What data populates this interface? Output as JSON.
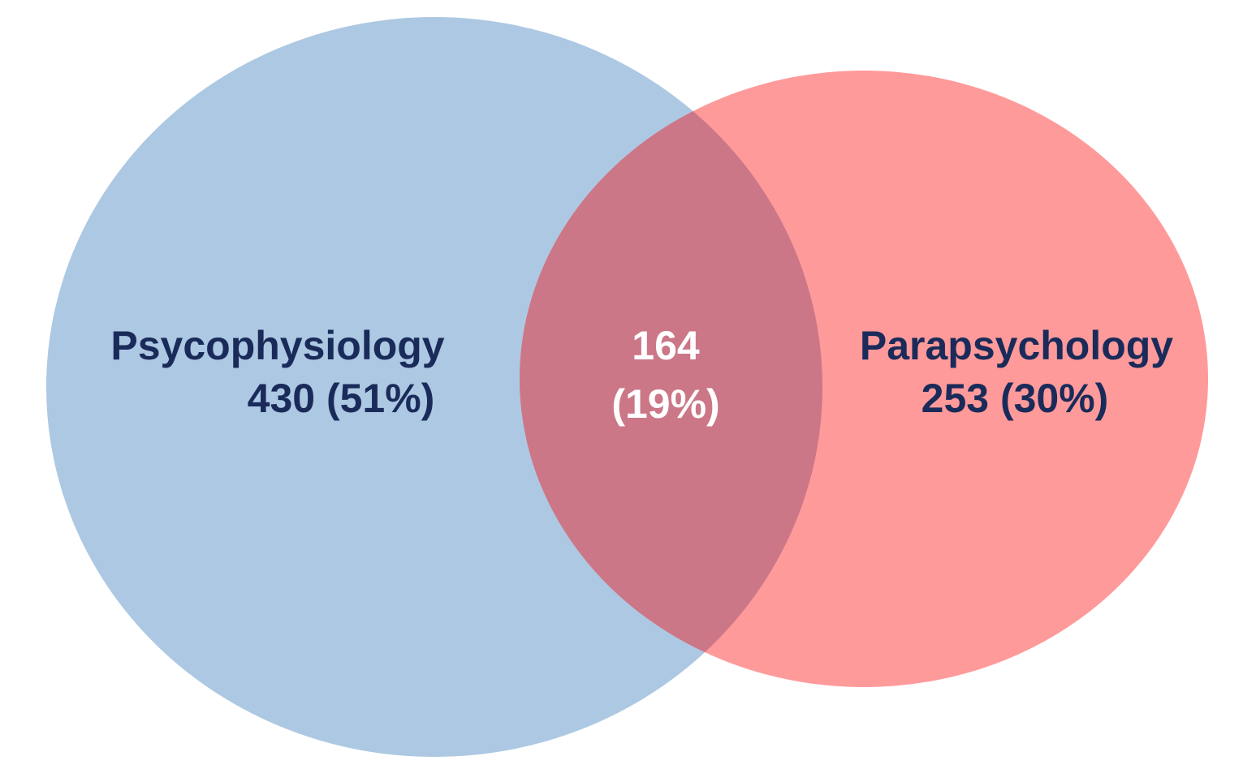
{
  "chart_data": {
    "type": "venn",
    "sets": [
      {
        "name": "Psycophysiology",
        "color": "#adc8e3",
        "value": 430,
        "value_label": "430 (51%)"
      },
      {
        "name": "Parapsychology",
        "color": "#ff9a9a",
        "value": 253,
        "value_label": "253 (30%)"
      }
    ],
    "intersection": {
      "color": "#cb7787",
      "value": 164,
      "value_label": "164 (19%)"
    }
  }
}
